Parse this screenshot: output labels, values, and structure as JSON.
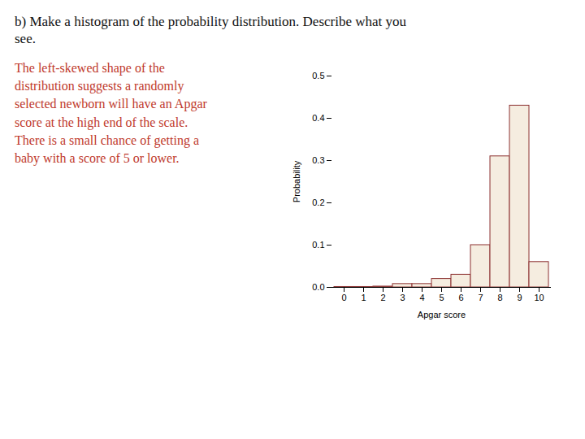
{
  "chart_data": {
    "type": "bar",
    "title": "b) Make a histogram of the probability distribution. Describe what you\nsee.",
    "annotations": [
      "The left-skewed shape of the\ndistribution suggests a randomly\nselected newborn will have an Apgar\nscore at the high end of the scale.\nThere is a small chance of getting a\nbaby with a score of 5 or lower."
    ],
    "x_label": "Apgar score",
    "y_label": "Probability",
    "categories": [
      "0",
      "1",
      "2",
      "3",
      "4",
      "5",
      "6",
      "7",
      "8",
      "9",
      "10"
    ],
    "values": [
      0.001,
      0.001,
      0.002,
      0.008,
      0.008,
      0.02,
      0.03,
      0.1,
      0.31,
      0.43,
      0.06
    ],
    "color": "#8b3030",
    "ylim": [
      0,
      0.5
    ],
    "yticks": [
      {
        "value": 0,
        "label": "0.0"
      },
      0.1,
      0.2,
      0.3,
      0.4,
      0.5
    ],
    "grid": false
  }
}
